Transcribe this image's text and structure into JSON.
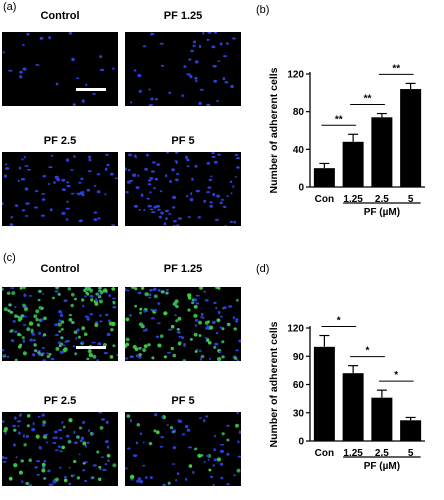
{
  "panels": {
    "a": {
      "label": "(a)",
      "images": [
        {
          "title": "Control",
          "density": 22,
          "green": 0
        },
        {
          "title": "PF 1.25",
          "density": 45,
          "green": 0
        },
        {
          "title": "PF 2.5",
          "density": 70,
          "green": 0
        },
        {
          "title": "PF 5",
          "density": 95,
          "green": 0
        }
      ]
    },
    "c": {
      "label": "(c)",
      "images": [
        {
          "title": "Control",
          "density": 180,
          "green": 0.55
        },
        {
          "title": "PF 1.25",
          "density": 150,
          "green": 0.45
        },
        {
          "title": "PF 2.5",
          "density": 120,
          "green": 0.3
        },
        {
          "title": "PF 5",
          "density": 80,
          "green": 0.2
        }
      ]
    },
    "b": {
      "label": "(b)"
    },
    "d": {
      "label": "(d)"
    }
  },
  "colors": {
    "nucleus": "#2a3fd6",
    "green": "#3cd23c",
    "bar": "#000000"
  },
  "chart_data": [
    {
      "type": "bar",
      "panel": "b",
      "categories": [
        "Con",
        "1.25",
        "2.5",
        "5"
      ],
      "values": [
        20,
        48,
        74,
        104
      ],
      "errors": [
        5,
        8,
        4,
        6
      ],
      "ylabel": "Number of adherent cells",
      "group_label": "PF (µM)",
      "ylim": [
        0,
        120
      ],
      "yticks": [
        0,
        40,
        80,
        120
      ],
      "significance": [
        {
          "from": 0,
          "to": 1,
          "label": "**"
        },
        {
          "from": 1,
          "to": 2,
          "label": "**"
        },
        {
          "from": 2,
          "to": 3,
          "label": "**"
        }
      ]
    },
    {
      "type": "bar",
      "panel": "d",
      "categories": [
        "Con",
        "1.25",
        "2.5",
        "5"
      ],
      "values": [
        100,
        72,
        46,
        22
      ],
      "errors": [
        12,
        8,
        8,
        3
      ],
      "ylabel": "Number of adherent cells",
      "group_label": "PF (µM)",
      "ylim": [
        0,
        120
      ],
      "yticks": [
        0,
        30,
        60,
        90,
        120
      ],
      "significance": [
        {
          "from": 0,
          "to": 1,
          "label": "*"
        },
        {
          "from": 1,
          "to": 2,
          "label": "*"
        },
        {
          "from": 2,
          "to": 3,
          "label": "*"
        }
      ]
    }
  ]
}
